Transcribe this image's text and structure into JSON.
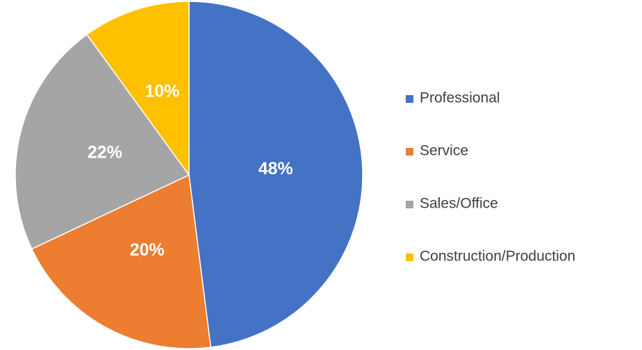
{
  "chart_data": {
    "type": "pie",
    "categories": [
      "Professional",
      "Service",
      "Sales/Office",
      "Construction/Production"
    ],
    "values": [
      48,
      20,
      22,
      10
    ],
    "value_labels": [
      "48%",
      "20%",
      "22%",
      "10%"
    ],
    "colors": [
      "#4472c4",
      "#ed7d31",
      "#a5a5a5",
      "#ffc000"
    ],
    "legend": "right"
  }
}
